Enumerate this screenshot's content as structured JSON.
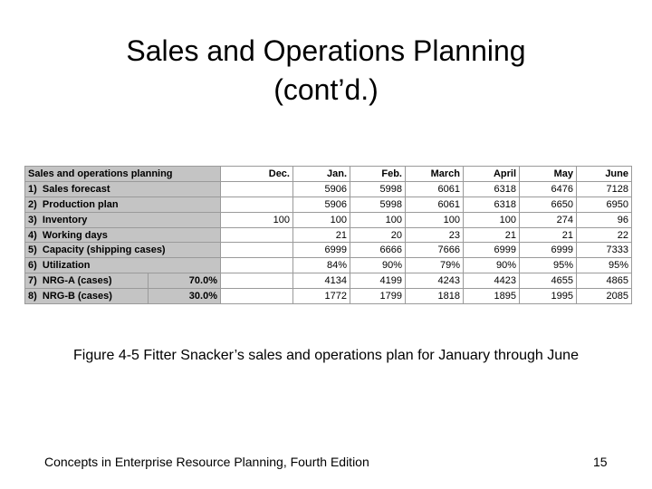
{
  "slide": {
    "title_lines": [
      "Sales and Operations Planning",
      "(cont’d.)"
    ],
    "table": {
      "header": [
        "Sales and operations planning",
        "Dec.",
        "Jan.",
        "Feb.",
        "March",
        "April",
        "May",
        "June"
      ],
      "rows": [
        {
          "label": "1)  Sales forecast",
          "share": null,
          "cells": [
            null,
            "5906",
            "5998",
            "6061",
            "6318",
            "6476",
            "7128"
          ]
        },
        {
          "label": "2)  Production plan",
          "share": null,
          "cells": [
            null,
            "5906",
            "5998",
            "6061",
            "6318",
            "6650",
            "6950"
          ]
        },
        {
          "label": "3)  Inventory",
          "share": null,
          "cells": [
            "100",
            "100",
            "100",
            "100",
            "100",
            "274",
            "96"
          ]
        },
        {
          "label": "4)  Working days",
          "share": null,
          "cells": [
            null,
            "21",
            "20",
            "23",
            "21",
            "21",
            "22"
          ]
        },
        {
          "label": "5)  Capacity (shipping cases)",
          "share": null,
          "cells": [
            null,
            "6999",
            "6666",
            "7666",
            "6999",
            "6999",
            "7333"
          ]
        },
        {
          "label": "6)  Utilization",
          "share": null,
          "cells": [
            null,
            "84%",
            "90%",
            "79%",
            "90%",
            "95%",
            "95%"
          ]
        },
        {
          "label": "7)  NRG-A (cases)",
          "share": "70.0%",
          "cells": [
            null,
            "4134",
            "4199",
            "4243",
            "4423",
            "4655",
            "4865"
          ]
        },
        {
          "label": "8)  NRG-B (cases)",
          "share": "30.0%",
          "cells": [
            null,
            "1772",
            "1799",
            "1818",
            "1895",
            "1995",
            "2085"
          ]
        }
      ]
    },
    "caption": "Figure 4-5  Fitter Snacker’s sales and operations plan for January through June",
    "footer": "Concepts in Enterprise Resource Planning, Fourth Edition",
    "page_number": "15"
  }
}
